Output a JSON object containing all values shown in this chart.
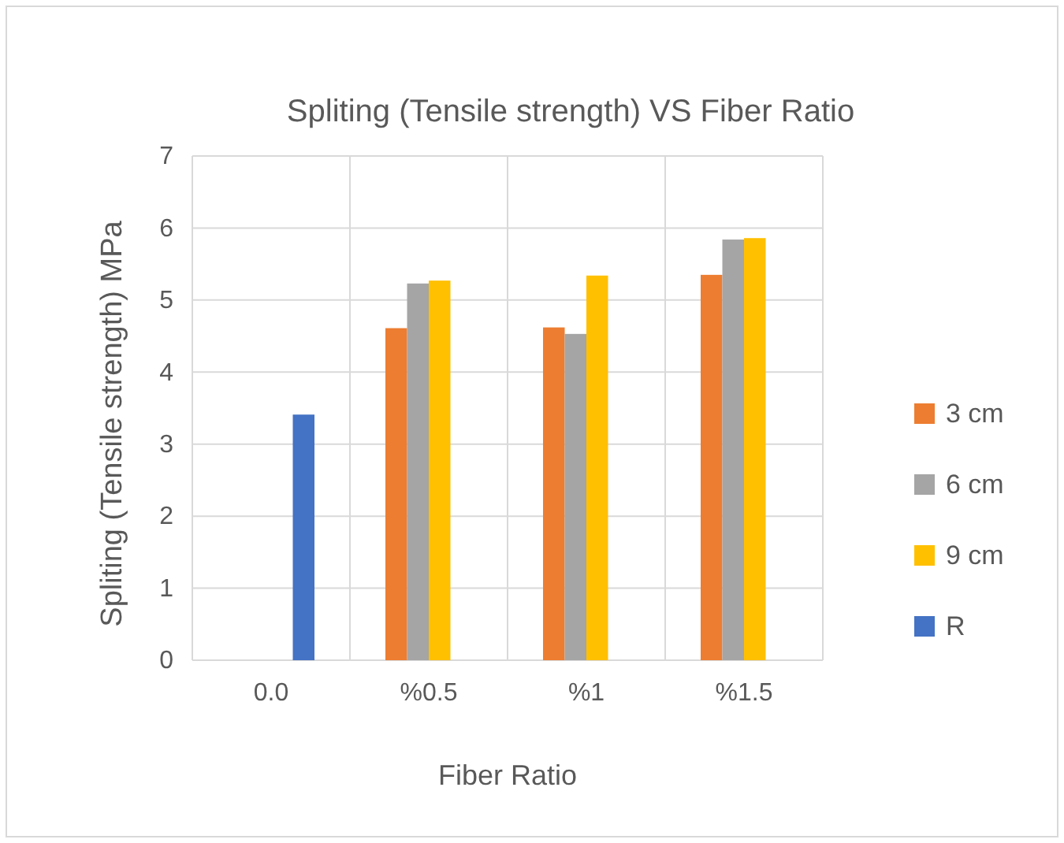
{
  "chart_data": {
    "type": "bar",
    "title": "Spliting (Tensile strength) VS Fiber Ratio",
    "xlabel": "Fiber Ratio",
    "ylabel": "Spliting (Tensile strength) MPa",
    "categories": [
      "0.0",
      "%0.5",
      "%1",
      "%1.5"
    ],
    "series": [
      {
        "name": "3 cm",
        "color": "#ed7d31",
        "values": [
          null,
          4.61,
          4.62,
          5.35
        ]
      },
      {
        "name": "6 cm",
        "color": "#a5a5a5",
        "values": [
          null,
          5.23,
          4.53,
          5.84
        ]
      },
      {
        "name": "9 cm",
        "color": "#ffc000",
        "values": [
          null,
          5.27,
          5.34,
          5.86
        ]
      },
      {
        "name": "R",
        "color": "#4472c4",
        "values": [
          3.41,
          null,
          null,
          null
        ]
      }
    ],
    "ylim": [
      0,
      7
    ],
    "yticks": [
      0,
      1,
      2,
      3,
      4,
      5,
      6,
      7
    ],
    "grid": true,
    "legend": "right"
  }
}
